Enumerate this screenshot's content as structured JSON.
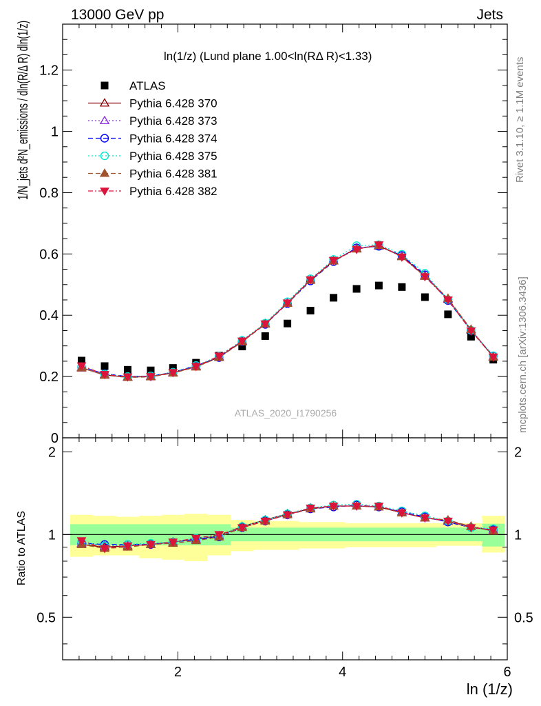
{
  "header": {
    "left": "13000 GeV pp",
    "right": "Jets"
  },
  "plot_title": "ln(1/z) (Lund plane 1.00<ln(RΔ R)<1.33)",
  "watermark": "ATLAS_2020_I1790256",
  "side_text": {
    "rivet": "Rivet 3.1.10, ≥ 1.1M events",
    "mcplots": "mcplots.cern.ch [arXiv:1306.3436]"
  },
  "colors": {
    "atlas": "#000000",
    "p370": "#8b0000",
    "p373": "#8a2be2",
    "p374": "#0000ff",
    "p375": "#00e5cc",
    "p381": "#a0522d",
    "p382": "#dc143c",
    "band_inner": "#99ff99",
    "band_outer": "#ffff99"
  },
  "chart_data": [
    {
      "type": "scatter",
      "panel": "main",
      "title": "ln(1/z) (Lund plane 1.00<ln(RΔ R)<1.33)",
      "ylabel": "1/N_jets d²N_emissions / dln(R/Δ R) dln(1/z)",
      "xlim": [
        0.6,
        6.0
      ],
      "ylim": [
        0,
        1.35
      ],
      "y_ticks": [
        0,
        0.2,
        0.4,
        0.6,
        0.8,
        1,
        1.2
      ],
      "y_tick_labels": [
        "0",
        "0.2",
        "0.4",
        "0.6",
        "0.8",
        "1",
        "1.2"
      ],
      "x": [
        0.83,
        1.11,
        1.39,
        1.67,
        1.94,
        2.22,
        2.5,
        2.78,
        3.06,
        3.33,
        3.61,
        3.89,
        4.17,
        4.44,
        4.72,
        5.0,
        5.28,
        5.56,
        5.83
      ],
      "legend": [
        "ATLAS",
        "Pythia 6.428 370",
        "Pythia 6.428 373",
        "Pythia 6.428 374",
        "Pythia 6.428 375",
        "Pythia 6.428 381",
        "Pythia 6.428 382"
      ],
      "series": [
        {
          "name": "ATLAS",
          "key": "atlas",
          "marker": "square",
          "line": "none",
          "values": [
            0.252,
            0.234,
            0.222,
            0.22,
            0.228,
            0.245,
            0.268,
            0.298,
            0.332,
            0.373,
            0.415,
            0.457,
            0.486,
            0.497,
            0.492,
            0.459,
            0.403,
            0.33,
            0.255
          ]
        },
        {
          "name": "Pythia 6.428 370",
          "key": "p370",
          "marker": "triangle-up-open",
          "line": "solid",
          "values": [
            0.228,
            0.205,
            0.198,
            0.2,
            0.212,
            0.232,
            0.263,
            0.315,
            0.372,
            0.44,
            0.515,
            0.578,
            0.618,
            0.626,
            0.592,
            0.528,
            0.452,
            0.352,
            0.264
          ]
        },
        {
          "name": "Pythia 6.428 373",
          "key": "p373",
          "marker": "triangle-up-open",
          "line": "dotted",
          "values": [
            0.23,
            0.207,
            0.199,
            0.201,
            0.213,
            0.234,
            0.265,
            0.317,
            0.373,
            0.441,
            0.516,
            0.579,
            0.617,
            0.627,
            0.594,
            0.53,
            0.453,
            0.353,
            0.265
          ]
        },
        {
          "name": "Pythia 6.428 374",
          "key": "p374",
          "marker": "circle-open",
          "line": "dashed",
          "values": [
            0.231,
            0.209,
            0.2,
            0.201,
            0.214,
            0.235,
            0.262,
            0.314,
            0.37,
            0.438,
            0.512,
            0.575,
            0.62,
            0.625,
            0.595,
            0.532,
            0.448,
            0.35,
            0.267
          ]
        },
        {
          "name": "Pythia 6.428 375",
          "key": "p375",
          "marker": "circle-open",
          "line": "dotted",
          "values": [
            0.232,
            0.208,
            0.2,
            0.202,
            0.214,
            0.236,
            0.266,
            0.318,
            0.374,
            0.444,
            0.519,
            0.582,
            0.627,
            0.63,
            0.599,
            0.537,
            0.451,
            0.351,
            0.268
          ]
        },
        {
          "name": "Pythia 6.428 381",
          "key": "p381",
          "marker": "triangle-up-filled",
          "line": "dashed",
          "values": [
            0.229,
            0.204,
            0.197,
            0.199,
            0.211,
            0.231,
            0.262,
            0.313,
            0.371,
            0.439,
            0.514,
            0.577,
            0.616,
            0.628,
            0.591,
            0.527,
            0.455,
            0.354,
            0.263
          ]
        },
        {
          "name": "Pythia 6.428 382",
          "key": "p382",
          "marker": "triangle-down-filled",
          "line": "dashdot",
          "values": [
            0.235,
            0.207,
            0.199,
            0.2,
            0.213,
            0.233,
            0.267,
            0.316,
            0.372,
            0.44,
            0.516,
            0.579,
            0.615,
            0.63,
            0.59,
            0.526,
            0.45,
            0.349,
            0.264
          ]
        }
      ]
    },
    {
      "type": "line",
      "panel": "ratio",
      "ylabel": "Ratio to ATLAS",
      "xlabel": "ln (1/z)",
      "xlim": [
        0.6,
        6.0
      ],
      "ylim": [
        0.35,
        2.25
      ],
      "y_ticks": [
        0.5,
        1,
        2
      ],
      "y_tick_labels": [
        "0.5",
        "1",
        "2"
      ],
      "x_ticks": [
        2,
        4,
        6
      ],
      "x_tick_labels": [
        "2",
        "4",
        "6"
      ],
      "x": [
        0.83,
        1.11,
        1.39,
        1.67,
        1.94,
        2.22,
        2.5,
        2.78,
        3.06,
        3.33,
        3.61,
        3.89,
        4.17,
        4.44,
        4.72,
        5.0,
        5.28,
        5.56,
        5.83
      ],
      "band_inner": {
        "lo": [
          0.915,
          0.915,
          0.915,
          0.915,
          0.915,
          0.915,
          0.915,
          0.945,
          0.945,
          0.945,
          0.945,
          0.945,
          0.945,
          0.945,
          0.945,
          0.945,
          0.945,
          0.945,
          0.905
        ],
        "hi": [
          1.09,
          1.09,
          1.09,
          1.09,
          1.09,
          1.09,
          1.09,
          1.06,
          1.06,
          1.06,
          1.06,
          1.06,
          1.06,
          1.06,
          1.06,
          1.06,
          1.06,
          1.06,
          1.095
        ]
      },
      "band_outer": {
        "lo": [
          0.83,
          0.84,
          0.84,
          0.82,
          0.81,
          0.8,
          0.84,
          0.87,
          0.88,
          0.88,
          0.89,
          0.89,
          0.9,
          0.9,
          0.9,
          0.9,
          0.91,
          0.91,
          0.86
        ],
        "hi": [
          1.18,
          1.17,
          1.16,
          1.17,
          1.18,
          1.19,
          1.18,
          1.13,
          1.12,
          1.12,
          1.11,
          1.11,
          1.1,
          1.1,
          1.1,
          1.1,
          1.1,
          1.1,
          1.17
        ]
      },
      "series": [
        {
          "name": "Pythia 6.428 370",
          "key": "p370",
          "marker": "triangle-up-open",
          "line": "solid",
          "values": [
            0.92,
            0.9,
            0.91,
            0.92,
            0.94,
            0.96,
            0.99,
            1.07,
            1.13,
            1.19,
            1.24,
            1.27,
            1.27,
            1.26,
            1.2,
            1.15,
            1.12,
            1.07,
            1.03
          ]
        },
        {
          "name": "Pythia 6.428 373",
          "key": "p373",
          "marker": "triangle-up-open",
          "line": "dotted",
          "values": [
            0.93,
            0.91,
            0.91,
            0.92,
            0.94,
            0.96,
            0.99,
            1.07,
            1.13,
            1.19,
            1.25,
            1.27,
            1.27,
            1.26,
            1.21,
            1.15,
            1.12,
            1.07,
            1.04
          ]
        },
        {
          "name": "Pythia 6.428 374",
          "key": "p374",
          "marker": "circle-open",
          "line": "dashed",
          "values": [
            0.93,
            0.92,
            0.92,
            0.92,
            0.94,
            0.96,
            0.98,
            1.06,
            1.12,
            1.18,
            1.24,
            1.26,
            1.28,
            1.26,
            1.21,
            1.16,
            1.11,
            1.06,
            1.04
          ]
        },
        {
          "name": "Pythia 6.428 375",
          "key": "p375",
          "marker": "circle-open",
          "line": "dotted",
          "values": [
            0.94,
            0.91,
            0.92,
            0.93,
            0.94,
            0.97,
            0.99,
            1.07,
            1.13,
            1.19,
            1.25,
            1.28,
            1.29,
            1.27,
            1.22,
            1.17,
            1.12,
            1.06,
            1.05
          ]
        },
        {
          "name": "Pythia 6.428 381",
          "key": "p381",
          "marker": "triangle-up-filled",
          "line": "dashed",
          "values": [
            0.92,
            0.89,
            0.9,
            0.92,
            0.93,
            0.95,
            0.98,
            1.06,
            1.12,
            1.18,
            1.24,
            1.27,
            1.27,
            1.26,
            1.2,
            1.15,
            1.13,
            1.07,
            1.03
          ]
        },
        {
          "name": "Pythia 6.428 382",
          "key": "p382",
          "marker": "triangle-down-filled",
          "line": "dashdot",
          "values": [
            0.95,
            0.89,
            0.91,
            0.92,
            0.94,
            0.97,
            1.0,
            1.06,
            1.12,
            1.18,
            1.25,
            1.27,
            1.27,
            1.27,
            1.2,
            1.15,
            1.12,
            1.06,
            1.04
          ]
        }
      ]
    }
  ]
}
